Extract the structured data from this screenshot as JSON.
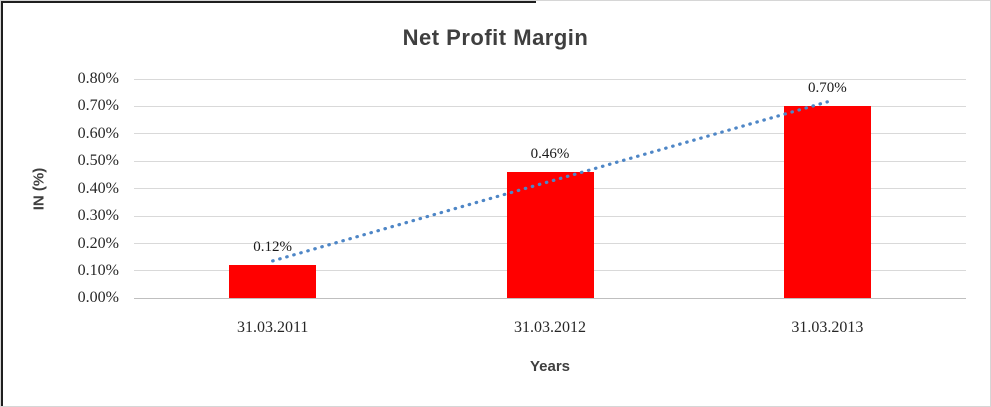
{
  "chart_data": {
    "type": "bar",
    "title": "Net Profit Margin",
    "xlabel": "Years",
    "ylabel": "IN (%)",
    "categories": [
      "31.03.2011",
      "31.03.2012",
      "31.03.2013"
    ],
    "values": [
      0.12,
      0.46,
      0.7
    ],
    "data_labels": [
      "0.12%",
      "0.46%",
      "0.70%"
    ],
    "ytick_labels": [
      "0.00%",
      "0.10%",
      "0.20%",
      "0.30%",
      "0.40%",
      "0.50%",
      "0.60%",
      "0.70%",
      "0.80%"
    ],
    "ylim": [
      0,
      0.8
    ],
    "ytick_step": 0.1,
    "grid": true,
    "legend": "none",
    "bar_color": "#ff0000",
    "trendline": {
      "type": "linear",
      "style": "dotted",
      "color": "#4e86c6"
    },
    "colors": {
      "title": "#3f3f3f",
      "axis_titles": "#3f3f3f",
      "tick_labels": "#262626",
      "gridline": "#d9d9d9",
      "zero_line": "#bfbfbf"
    }
  }
}
